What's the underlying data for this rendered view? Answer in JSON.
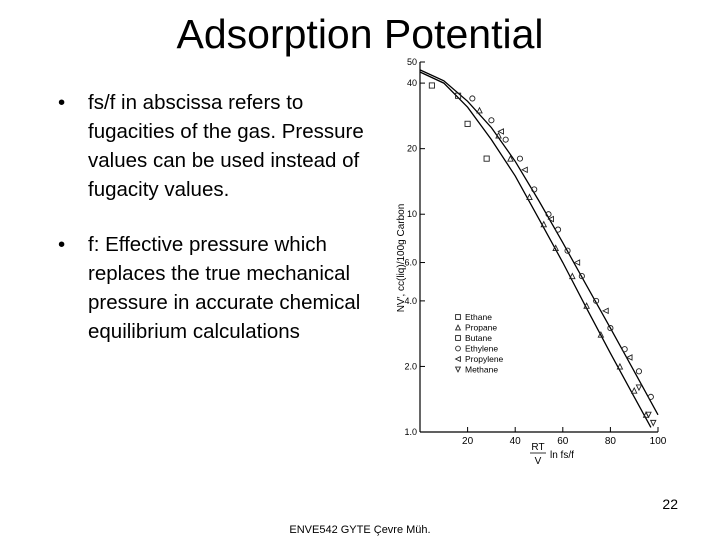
{
  "slide": {
    "title": "Adsorption Potential",
    "bullets": [
      "fs/f in abscissa refers to fugacities of the gas. Pressure values can be used instead of fugacity values.",
      "f: Effective pressure which replaces the true mechanical pressure in accurate chemical equilibrium calculations"
    ],
    "bullet_symbol": "•",
    "page_number": "22",
    "footer": "ENVE542 GYTE Çevre Müh."
  },
  "chart_data": {
    "type": "scatter",
    "xlabel_parts": [
      "RT",
      "V",
      "ln fs/f"
    ],
    "ylabel": "NV′, cc(liq)/100g Carbon",
    "x_ticks": [
      20,
      40,
      60,
      80,
      100
    ],
    "y_ticks": [
      1.0,
      2.0,
      4.0,
      6.0,
      10,
      20,
      40,
      50
    ],
    "x_tick_labels": [
      "20",
      "40",
      "60",
      "80",
      "100"
    ],
    "y_tick_labels": [
      "1.0",
      "2.0",
      "4.0",
      "6.0",
      "10",
      "20",
      "40",
      "50"
    ],
    "xlim": [
      0,
      100
    ],
    "ylim": [
      1.0,
      50
    ],
    "y_scale": "log",
    "legend_position": "lower-center",
    "legend": [
      {
        "name": "Ethane",
        "marker": "square"
      },
      {
        "name": "Propane",
        "marker": "triangle-up"
      },
      {
        "name": "Butane",
        "marker": "square"
      },
      {
        "name": "Ethylene",
        "marker": "circle"
      },
      {
        "name": "Propylene",
        "marker": "triangle-left"
      },
      {
        "name": "Methane",
        "marker": "triangle-down"
      }
    ],
    "curves": [
      {
        "x": [
          0,
          10,
          20,
          30,
          40,
          50,
          60,
          70,
          80,
          90,
          97
        ],
        "y": [
          45,
          40,
          31,
          22,
          15,
          9.5,
          6.0,
          3.7,
          2.3,
          1.45,
          1.05
        ]
      },
      {
        "x": [
          0,
          10,
          20,
          30,
          40,
          50,
          60,
          70,
          80,
          90,
          100
        ],
        "y": [
          46,
          41,
          33,
          25,
          17.5,
          11.5,
          7.4,
          4.7,
          3.0,
          1.9,
          1.2
        ]
      }
    ],
    "series": [
      {
        "marker": "square",
        "points": [
          [
            5,
            39
          ],
          [
            16,
            35
          ],
          [
            20,
            26
          ],
          [
            28,
            18
          ]
        ]
      },
      {
        "marker": "circle",
        "points": [
          [
            22,
            34
          ],
          [
            30,
            27
          ],
          [
            36,
            22
          ],
          [
            42,
            18
          ],
          [
            48,
            13
          ],
          [
            54,
            10
          ],
          [
            58,
            8.5
          ],
          [
            62,
            6.8
          ],
          [
            68,
            5.2
          ],
          [
            74,
            4.0
          ],
          [
            80,
            3.0
          ],
          [
            86,
            2.4
          ],
          [
            92,
            1.9
          ],
          [
            97,
            1.45
          ]
        ]
      },
      {
        "marker": "triangle-up",
        "points": [
          [
            25,
            30
          ],
          [
            33,
            23
          ],
          [
            38,
            18
          ],
          [
            46,
            12
          ],
          [
            52,
            9
          ],
          [
            57,
            7
          ],
          [
            64,
            5.2
          ],
          [
            70,
            3.8
          ],
          [
            76,
            2.8
          ],
          [
            84,
            2.0
          ],
          [
            90,
            1.55
          ],
          [
            95,
            1.2
          ]
        ]
      },
      {
        "marker": "triangle-left",
        "points": [
          [
            34,
            24
          ],
          [
            44,
            16
          ],
          [
            55,
            9.5
          ],
          [
            66,
            6.0
          ],
          [
            78,
            3.6
          ],
          [
            88,
            2.2
          ]
        ]
      },
      {
        "marker": "triangle-down",
        "points": [
          [
            92,
            1.6
          ],
          [
            96,
            1.2
          ],
          [
            98,
            1.1
          ]
        ]
      }
    ]
  }
}
